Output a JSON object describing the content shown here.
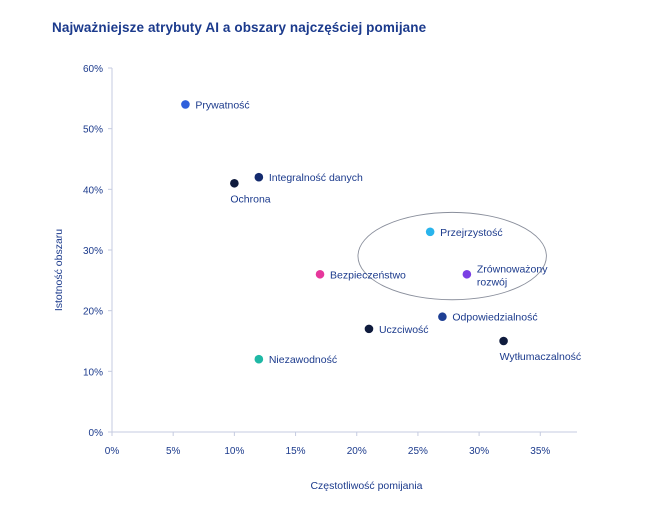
{
  "chart_data": {
    "type": "scatter",
    "title": "Najważniejsze atrybuty AI a obszary najczęściej pomijane",
    "xlabel": "Częstotliwość pomijania",
    "ylabel": "Istotność obszaru",
    "xlim": [
      0,
      38
    ],
    "ylim": [
      0,
      60
    ],
    "x_ticks": [
      {
        "value": 0,
        "label": "0%"
      },
      {
        "value": 5,
        "label": "5%"
      },
      {
        "value": 10,
        "label": "10%"
      },
      {
        "value": 15,
        "label": "15%"
      },
      {
        "value": 20,
        "label": "20%"
      },
      {
        "value": 25,
        "label": "25%"
      },
      {
        "value": 30,
        "label": "30%"
      },
      {
        "value": 35,
        "label": "35%"
      }
    ],
    "y_ticks": [
      {
        "value": 0,
        "label": "0%"
      },
      {
        "value": 10,
        "label": "10%"
      },
      {
        "value": 20,
        "label": "20%"
      },
      {
        "value": 30,
        "label": "30%"
      },
      {
        "value": 40,
        "label": "40%"
      },
      {
        "value": 50,
        "label": "50%"
      },
      {
        "value": 60,
        "label": "60%"
      }
    ],
    "grid": false,
    "points": [
      {
        "name": "Prywatność",
        "x": 6,
        "y": 54,
        "color": "#2f5fdb",
        "label_pos": "right"
      },
      {
        "name": "Integralność danych",
        "x": 12,
        "y": 42,
        "color": "#142b6e",
        "label_pos": "right"
      },
      {
        "name": "Ochrona",
        "x": 10,
        "y": 41,
        "color": "#0f1b3d",
        "label_pos": "below"
      },
      {
        "name": "Przejrzystość",
        "x": 26,
        "y": 33,
        "color": "#29b4ec",
        "label_pos": "right"
      },
      {
        "name": "Zrównoważony rozwój",
        "x": 29,
        "y": 26,
        "color": "#7b3fe4",
        "label_pos": "right-wrap"
      },
      {
        "name": "Bezpieczeństwo",
        "x": 17,
        "y": 26,
        "color": "#e6379b",
        "label_pos": "right"
      },
      {
        "name": "Odpowiedzialność",
        "x": 27,
        "y": 19,
        "color": "#1e3f94",
        "label_pos": "right"
      },
      {
        "name": "Uczciwość",
        "x": 21,
        "y": 17,
        "color": "#0f1b3d",
        "label_pos": "right"
      },
      {
        "name": "Wytłumaczalność",
        "x": 32,
        "y": 15,
        "color": "#0f1b3d",
        "label_pos": "below"
      },
      {
        "name": "Niezawodność",
        "x": 12,
        "y": 12,
        "color": "#1fb8a5",
        "label_pos": "right"
      }
    ],
    "highlight": {
      "shape": "ellipse",
      "cx": 27.8,
      "cy": 29,
      "rx": 7.7,
      "ry": 7.2
    }
  }
}
